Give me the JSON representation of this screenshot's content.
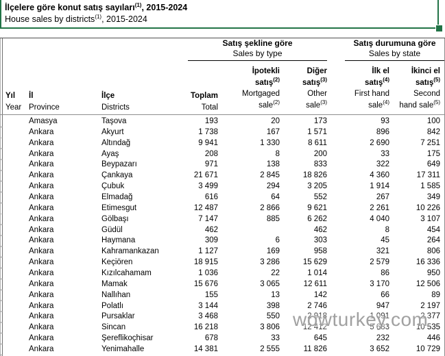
{
  "title": {
    "tr_pre": "İlçelere göre konut satış sayıları",
    "tr_sup": "(1)",
    "tr_post": ", 2015-2024",
    "en_pre": "House sales by districts",
    "en_sup": "(1)",
    "en_post": ", 2015-2024"
  },
  "groups": {
    "by_type": {
      "tr": "Satış şekline göre",
      "en": "Sales by type"
    },
    "by_state": {
      "tr": "Satış durumuna göre",
      "en": "Sales by state"
    }
  },
  "columns": {
    "year": {
      "tr": "Yıl",
      "en": "Year"
    },
    "province": {
      "tr": "İl",
      "en": "Province"
    },
    "district": {
      "tr": "İlçe",
      "en": "Districts"
    },
    "total": {
      "tr": "Toplam",
      "en": "Total"
    },
    "mortgaged": {
      "tr1": "İpotekli",
      "tr2": "satış",
      "tr2_sup": "(2)",
      "en1": "Mortgaged",
      "en2": "sale",
      "en2_sup": "(2)"
    },
    "other": {
      "tr1": "Diğer",
      "tr2": "satış",
      "tr2_sup": "(3)",
      "en1": "Other",
      "en2": "sale",
      "en2_sup": "(3)"
    },
    "first_hand": {
      "tr1": "İlk el",
      "tr2": "satış",
      "tr2_sup": "(4)",
      "en1": "First hand",
      "en2": "sale",
      "en2_sup": "(4)"
    },
    "second_hand": {
      "tr1": "İkinci el",
      "tr2": "satış",
      "tr2_sup": "(5)",
      "en1": "Second",
      "en2": "hand sale",
      "en2_sup": "(5)"
    }
  },
  "colors": {
    "selection_green": "#217346"
  },
  "watermark": "wowturkey.com",
  "table": {
    "rows": [
      {
        "year": "",
        "province": "Amasya",
        "district": "Taşova",
        "total": "193",
        "mortgaged": "20",
        "other": "173",
        "first_hand": "93",
        "second_hand": "100"
      },
      {
        "year": "",
        "province": "Ankara",
        "district": "Akyurt",
        "total": "1 738",
        "mortgaged": "167",
        "other": "1 571",
        "first_hand": "896",
        "second_hand": "842"
      },
      {
        "year": "",
        "province": "Ankara",
        "district": "Altındağ",
        "total": "9 941",
        "mortgaged": "1 330",
        "other": "8 611",
        "first_hand": "2 690",
        "second_hand": "7 251"
      },
      {
        "year": "",
        "province": "Ankara",
        "district": "Ayaş",
        "total": "208",
        "mortgaged": "8",
        "other": "200",
        "first_hand": "33",
        "second_hand": "175"
      },
      {
        "year": "",
        "province": "Ankara",
        "district": "Beypazarı",
        "total": "971",
        "mortgaged": "138",
        "other": "833",
        "first_hand": "322",
        "second_hand": "649"
      },
      {
        "year": "",
        "province": "Ankara",
        "district": "Çankaya",
        "total": "21 671",
        "mortgaged": "2 845",
        "other": "18 826",
        "first_hand": "4 360",
        "second_hand": "17 311"
      },
      {
        "year": "",
        "province": "Ankara",
        "district": "Çubuk",
        "total": "3 499",
        "mortgaged": "294",
        "other": "3 205",
        "first_hand": "1 914",
        "second_hand": "1 585"
      },
      {
        "year": "",
        "province": "Ankara",
        "district": "Elmadağ",
        "total": "616",
        "mortgaged": "64",
        "other": "552",
        "first_hand": "267",
        "second_hand": "349"
      },
      {
        "year": "",
        "province": "Ankara",
        "district": "Etimesgut",
        "total": "12 487",
        "mortgaged": "2 866",
        "other": "9 621",
        "first_hand": "2 261",
        "second_hand": "10 226"
      },
      {
        "year": "",
        "province": "Ankara",
        "district": "Gölbaşı",
        "total": "7 147",
        "mortgaged": "885",
        "other": "6 262",
        "first_hand": "4 040",
        "second_hand": "3 107"
      },
      {
        "year": "",
        "province": "Ankara",
        "district": "Güdül",
        "total": "462",
        "mortgaged": "",
        "other": "462",
        "first_hand": "8",
        "second_hand": "454"
      },
      {
        "year": "",
        "province": "Ankara",
        "district": "Haymana",
        "total": "309",
        "mortgaged": "6",
        "other": "303",
        "first_hand": "45",
        "second_hand": "264"
      },
      {
        "year": "",
        "province": "Ankara",
        "district": "Kahramankazan",
        "total": "1 127",
        "mortgaged": "169",
        "other": "958",
        "first_hand": "321",
        "second_hand": "806"
      },
      {
        "year": "",
        "province": "Ankara",
        "district": "Keçiören",
        "total": "18 915",
        "mortgaged": "3 286",
        "other": "15 629",
        "first_hand": "2 579",
        "second_hand": "16 336"
      },
      {
        "year": "",
        "province": "Ankara",
        "district": "Kızılcahamam",
        "total": "1 036",
        "mortgaged": "22",
        "other": "1 014",
        "first_hand": "86",
        "second_hand": "950"
      },
      {
        "year": "",
        "province": "Ankara",
        "district": "Mamak",
        "total": "15 676",
        "mortgaged": "3 065",
        "other": "12 611",
        "first_hand": "3 170",
        "second_hand": "12 506"
      },
      {
        "year": "",
        "province": "Ankara",
        "district": "Nallıhan",
        "total": "155",
        "mortgaged": "13",
        "other": "142",
        "first_hand": "66",
        "second_hand": "89"
      },
      {
        "year": "",
        "province": "Ankara",
        "district": "Polatlı",
        "total": "3 144",
        "mortgaged": "398",
        "other": "2 746",
        "first_hand": "947",
        "second_hand": "2 197"
      },
      {
        "year": "",
        "province": "Ankara",
        "district": "Pursaklar",
        "total": "3 468",
        "mortgaged": "550",
        "other": "2 918",
        "first_hand": "1 091",
        "second_hand": "2 377"
      },
      {
        "year": "",
        "province": "Ankara",
        "district": "Sincan",
        "total": "16 218",
        "mortgaged": "3 806",
        "other": "12 412",
        "first_hand": "5 683",
        "second_hand": "10 535"
      },
      {
        "year": "",
        "province": "Ankara",
        "district": "Şereflikoçhisar",
        "total": "678",
        "mortgaged": "33",
        "other": "645",
        "first_hand": "232",
        "second_hand": "446"
      },
      {
        "year": "",
        "province": "Ankara",
        "district": "Yenimahalle",
        "total": "14 381",
        "mortgaged": "2 555",
        "other": "11 826",
        "first_hand": "3 652",
        "second_hand": "10 729"
      }
    ]
  }
}
